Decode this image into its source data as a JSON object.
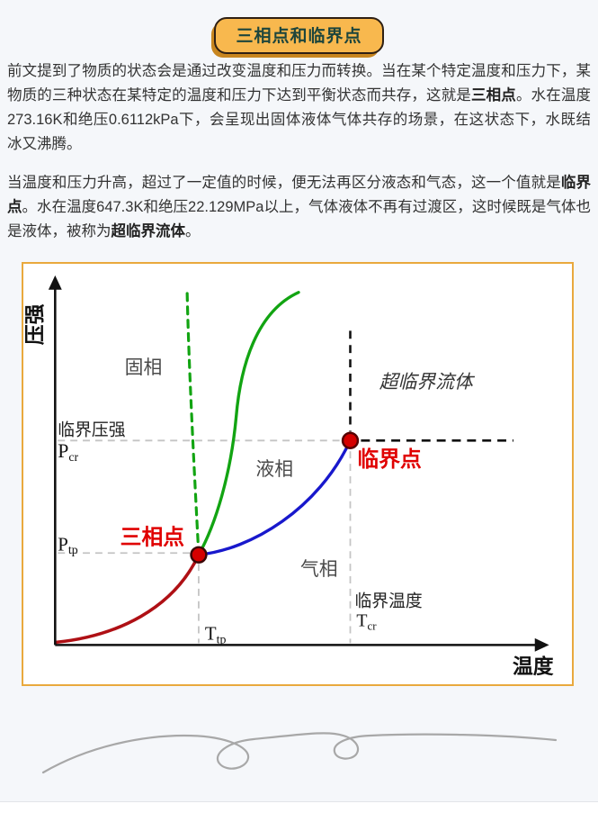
{
  "page": {
    "title_badge": "三相点和临界点",
    "accent_border_color": "#e9a93d",
    "badge_fill_color": "#f8b84e",
    "background_color": "#f5f7fa"
  },
  "paragraphs": [
    {
      "segments": [
        {
          "text": "前文提到了物质的状态会是通过改变温度和压力而转换。当在某个特定温度和压力下，某物质的三种状态在某特定的温度和压力下达到平衡状态而共存，这就是",
          "bold": false
        },
        {
          "text": "三相点",
          "bold": true
        },
        {
          "text": "。水在温度273.16K和绝压0.6112kPa下，会呈现出固体液体气体共存的场景，在这状态下，水既结冰又沸腾。",
          "bold": false
        }
      ]
    },
    {
      "segments": [
        {
          "text": "当温度和压力升高，超过了一定值的时候，便无法再区分液态和气态，这一个值就是",
          "bold": false
        },
        {
          "text": "临界点",
          "bold": true
        },
        {
          "text": "。水在温度647.3K和绝压22.129MPa以上，气体液体不再有过渡区，这时候既是气体也是液体，被称为",
          "bold": false
        },
        {
          "text": "超临界流体",
          "bold": true
        },
        {
          "text": "。",
          "bold": false
        }
      ]
    }
  ],
  "diagram": {
    "type": "phase-diagram",
    "y_axis_label": "压强",
    "x_axis_label": "温度",
    "region_solid": "固相",
    "region_liquid": "液相",
    "region_gas": "气相",
    "region_supercritical": "超临界流体",
    "triple_point_label": "三相点",
    "critical_point_label": "临界点",
    "critical_pressure_label": "临界压强",
    "critical_temperature_label": "临界温度",
    "p_cr_main": "P",
    "p_cr_sub": "cr",
    "p_tp_main": "P",
    "p_tp_sub": "tp",
    "t_tp_main": "T",
    "t_tp_sub": "tp",
    "t_cr_main": "T",
    "t_cr_sub": "cr",
    "colors": {
      "sublimation_curve": "#af1015",
      "vaporization_curve": "#1818cc",
      "melting_curve": "#12a412",
      "point_fill": "#d40000",
      "red_label": "#e00000",
      "axis": "#111111",
      "guide_gray": "#c4c4c4"
    }
  }
}
